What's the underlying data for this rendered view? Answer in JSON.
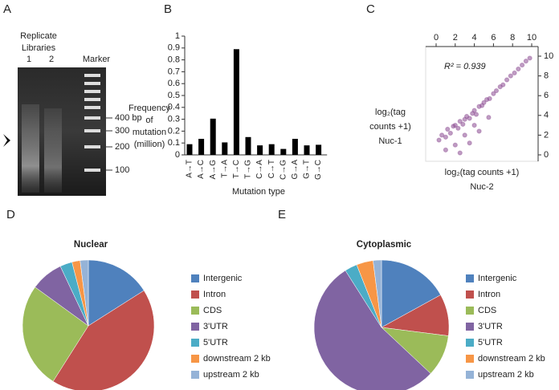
{
  "gel": {
    "label": "A",
    "header_lines": [
      "Replicate",
      "Libraries"
    ],
    "lanes": [
      "1",
      "2",
      "Marker"
    ],
    "sizes": [
      "400 bp",
      "300",
      "200",
      "100"
    ]
  },
  "chart_data": [
    {
      "type": "bar",
      "label": "B",
      "ylabel_lines": [
        "Frequency",
        "of",
        "mutation",
        "(million)"
      ],
      "xlabel": "Mutation type",
      "categories": [
        "A→T",
        "A→C",
        "A→G",
        "T→A",
        "T→C",
        "T→G",
        "C→A",
        "C→T",
        "C→G",
        "G→A",
        "G→T",
        "G→C"
      ],
      "values": [
        0.09,
        0.135,
        0.305,
        0.105,
        0.89,
        0.15,
        0.08,
        0.09,
        0.05,
        0.135,
        0.08,
        0.085
      ],
      "color": "#000000",
      "ylim": [
        0,
        1
      ],
      "yticks": [
        0,
        0.1,
        0.2,
        0.3,
        0.4,
        0.5,
        0.6,
        0.7,
        0.8,
        0.9,
        1
      ]
    },
    {
      "type": "scatter",
      "label": "C",
      "annotation": "R² = 0.939",
      "ylabel_lines": [
        "log₂(tag",
        "counts +1)",
        "Nuc-1"
      ],
      "xlabel_lines": [
        "log₂(tag counts +1)",
        "Nuc-2"
      ],
      "xaxis_position": "top",
      "yaxis_position": "right",
      "color": "#8b4a92",
      "xlim": [
        0,
        10
      ],
      "xticks": [
        0,
        2,
        4,
        6,
        8,
        10
      ],
      "ylim": [
        0,
        10
      ],
      "yticks": [
        0,
        2,
        4,
        6,
        8,
        10
      ],
      "x": [
        0.3,
        0.6,
        1.0,
        1.2,
        1.5,
        1.8,
        2.0,
        2.3,
        2.5,
        2.8,
        3.0,
        3.2,
        3.5,
        3.8,
        4.0,
        4.2,
        4.5,
        4.8,
        5.0,
        5.3,
        5.6,
        6.0,
        6.3,
        6.7,
        7.0,
        7.4,
        7.8,
        8.2,
        8.6,
        9.0,
        9.4,
        9.8,
        1.0,
        2.0,
        3.0,
        4.0,
        2.5,
        3.5,
        4.5,
        5.5
      ],
      "values": [
        1.5,
        2.0,
        1.8,
        2.6,
        2.2,
        2.9,
        3.0,
        2.7,
        3.4,
        3.1,
        3.6,
        3.9,
        3.7,
        4.2,
        4.5,
        4.1,
        4.9,
        5.0,
        5.3,
        5.6,
        5.7,
        6.2,
        6.5,
        6.9,
        7.1,
        7.6,
        8.0,
        8.3,
        8.7,
        9.1,
        9.5,
        9.8,
        0.5,
        1.0,
        2.0,
        3.0,
        0.2,
        1.2,
        2.4,
        3.8
      ]
    },
    {
      "type": "pie",
      "label": "D",
      "title": "Nuclear",
      "categories": [
        "Intergenic",
        "Intron",
        "CDS",
        "3'UTR",
        "5'UTR",
        "downstream 2 kb",
        "upstream 2 kb"
      ],
      "values": [
        16,
        43,
        26,
        8,
        3,
        2,
        2
      ],
      "colors": [
        "#4f81bd",
        "#c0504d",
        "#9bbb59",
        "#8064a2",
        "#4bacc6",
        "#f79646",
        "#95b3d7"
      ]
    },
    {
      "type": "pie",
      "label": "E",
      "title": "Cytoplasmic",
      "categories": [
        "Intergenic",
        "Intron",
        "CDS",
        "3'UTR",
        "5'UTR",
        "downstream 2 kb",
        "upstream 2 kb"
      ],
      "values": [
        17,
        10,
        10,
        54,
        3,
        4,
        2
      ],
      "colors": [
        "#4f81bd",
        "#c0504d",
        "#9bbb59",
        "#8064a2",
        "#4bacc6",
        "#f79646",
        "#95b3d7"
      ]
    }
  ]
}
